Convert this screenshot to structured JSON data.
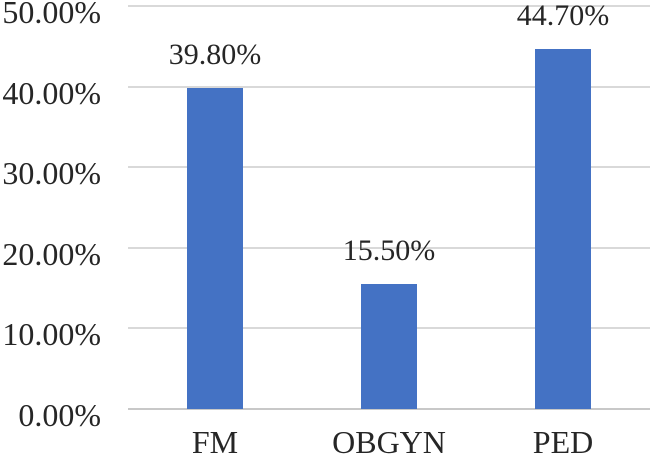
{
  "chart_data": {
    "type": "bar",
    "title": "",
    "xlabel": "",
    "ylabel": "",
    "categories": [
      "FM",
      "OBGYN",
      "PED"
    ],
    "values": [
      39.8,
      15.5,
      44.7
    ],
    "value_labels": [
      "39.80%",
      "15.50%",
      "44.70%"
    ],
    "ylim": [
      0,
      50
    ],
    "y_ticks": [
      {
        "value": 0,
        "label": "0.00%"
      },
      {
        "value": 10,
        "label": "10.00%"
      },
      {
        "value": 20,
        "label": "20.00%"
      },
      {
        "value": 30,
        "label": "30.00%"
      },
      {
        "value": 40,
        "label": "40.00%"
      },
      {
        "value": 50,
        "label": "50.00%"
      }
    ],
    "grid": true,
    "legend": false,
    "colors": {
      "bar": "#4472C4",
      "gridline": "#D9D9D9",
      "axis_line": "#C8C8C8",
      "text": "#262626",
      "background": "#FFFFFF"
    }
  }
}
